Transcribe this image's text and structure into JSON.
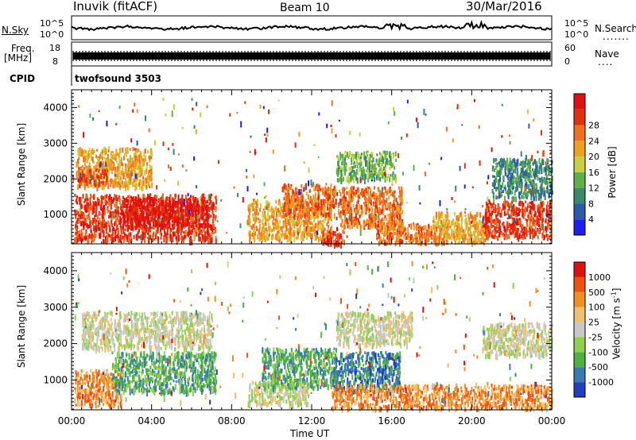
{
  "header": {
    "station": "Inuvik (fitACF)",
    "beam": "Beam 10",
    "date": "30/Mar/2016"
  },
  "strips": {
    "nsky_label": "N.Sky",
    "nsky_ticks": [
      "10^5",
      "10^0"
    ],
    "nsearch_label": "N.Search",
    "nsearch_ticks": [
      "10^5",
      "10^0"
    ],
    "freq_label_1": "Freq.",
    "freq_label_2": "[MHz]",
    "freq_ticks": [
      "18",
      "8"
    ],
    "nave_label": "Nave",
    "nave_ticks": [
      "60",
      "0"
    ],
    "cpid_label": "CPID",
    "cpid_value": "twofsound 3503"
  },
  "colors": {
    "power": [
      "#1e1ef0",
      "#2a5aa8",
      "#3a8a6a",
      "#5fb04a",
      "#c8d040",
      "#f0a020",
      "#f07020",
      "#e03010",
      "#e01010"
    ],
    "velocity": [
      "#e01010",
      "#f05010",
      "#f09020",
      "#f0c070",
      "#c8c8c8",
      "#90d050",
      "#50b040",
      "#3a7ab0",
      "#2040c0"
    ]
  },
  "chart_data": [
    {
      "type": "heatmap",
      "panel": "power",
      "ylabel": "Slant Range [km]",
      "xlabel": "",
      "x_ticks": [
        "00:00",
        "04:00",
        "08:00",
        "12:00",
        "16:00",
        "20:00",
        "00:00"
      ],
      "y_ticks": [
        1000,
        2000,
        3000,
        4000
      ],
      "xlim_hours": [
        0,
        24
      ],
      "ylim_km": [
        180,
        4500
      ],
      "colorbar_label": "Power [dB]",
      "colorbar_ticks": [
        "4",
        "8",
        "12",
        "16",
        "20",
        "24",
        "28"
      ],
      "regions": [
        {
          "t0": 0.1,
          "t1": 7.2,
          "r0": 300,
          "r1": 1600,
          "level": 7
        },
        {
          "t0": 2.5,
          "t1": 6.8,
          "r0": 700,
          "r1": 1500,
          "level": 8
        },
        {
          "t0": 0.2,
          "t1": 4.0,
          "r0": 1800,
          "r1": 2900,
          "level": 5
        },
        {
          "t0": 0.3,
          "t1": 1.8,
          "r0": 1900,
          "r1": 2300,
          "level": 7
        },
        {
          "t0": 8.8,
          "t1": 13.0,
          "r0": 350,
          "r1": 1450,
          "level": 5
        },
        {
          "t0": 10.5,
          "t1": 13.2,
          "r0": 1000,
          "r1": 1900,
          "level": 6
        },
        {
          "t0": 12.4,
          "t1": 13.6,
          "r0": 200,
          "r1": 600,
          "level": 7
        },
        {
          "t0": 13.3,
          "t1": 16.5,
          "r0": 700,
          "r1": 1800,
          "level": 6
        },
        {
          "t0": 13.2,
          "t1": 16.2,
          "r0": 2000,
          "r1": 2800,
          "level": 3
        },
        {
          "t0": 15.2,
          "t1": 18.8,
          "r0": 250,
          "r1": 800,
          "level": 6
        },
        {
          "t0": 18.0,
          "t1": 20.8,
          "r0": 250,
          "r1": 1100,
          "level": 5
        },
        {
          "t0": 20.5,
          "t1": 24.0,
          "r0": 400,
          "r1": 1400,
          "level": 7
        },
        {
          "t0": 21.0,
          "t1": 24.0,
          "r0": 1500,
          "r1": 2600,
          "level": 2
        }
      ]
    },
    {
      "type": "heatmap",
      "panel": "velocity",
      "ylabel": "Slant Range [km]",
      "xlabel": "Time UT",
      "x_ticks": [
        "00:00",
        "04:00",
        "08:00",
        "12:00",
        "16:00",
        "20:00",
        "00:00"
      ],
      "y_ticks": [
        1000,
        2000,
        3000,
        4000
      ],
      "xlim_hours": [
        0,
        24
      ],
      "ylim_km": [
        180,
        4500
      ],
      "colorbar_label": "Velocity [m s^-1]",
      "colorbar_ticks": [
        "1000",
        "500",
        "100",
        "25",
        "-25",
        "-100",
        "-500",
        "-1000"
      ],
      "regions": [
        {
          "t0": 0.1,
          "t1": 2.5,
          "r0": 300,
          "r1": 1300,
          "level": 2
        },
        {
          "t0": 2.0,
          "t1": 7.2,
          "r0": 700,
          "r1": 1800,
          "level": 6
        },
        {
          "t0": 0.5,
          "t1": 7.0,
          "r0": 1900,
          "r1": 2900,
          "level": 4
        },
        {
          "t0": 8.8,
          "t1": 11.8,
          "r0": 350,
          "r1": 1000,
          "level": 4
        },
        {
          "t0": 9.5,
          "t1": 13.2,
          "r0": 800,
          "r1": 1900,
          "level": 6
        },
        {
          "t0": 13.0,
          "t1": 16.4,
          "r0": 700,
          "r1": 1800,
          "level": 7
        },
        {
          "t0": 13.2,
          "t1": 17.0,
          "r0": 2000,
          "r1": 2900,
          "level": 4
        },
        {
          "t0": 13.0,
          "t1": 24.0,
          "r0": 250,
          "r1": 900,
          "level": 2
        },
        {
          "t0": 20.5,
          "t1": 24.0,
          "r0": 1700,
          "r1": 2600,
          "level": 4
        }
      ]
    }
  ]
}
